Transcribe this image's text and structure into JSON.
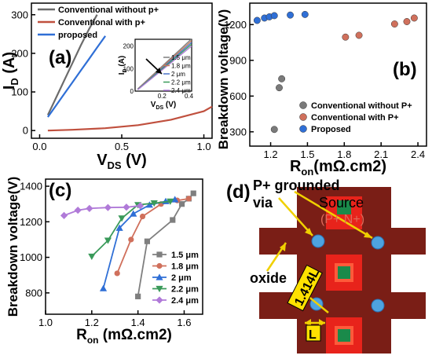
{
  "chart_data": [
    {
      "panel": "(a)",
      "type": "line",
      "xlabel_main": "V",
      "xlabel_sub": "DS",
      "xlabel_unit": " (V)",
      "ylabel_main": "I",
      "ylabel_sub": "D",
      "ylabel_unit": " (A)",
      "xlim": [
        -0.05,
        1.05
      ],
      "ylim": [
        -20,
        330
      ],
      "x_ticks": [
        0.0,
        0.5,
        1.0
      ],
      "x_tick_labels": [
        "0.0",
        "0.5",
        "1.0"
      ],
      "y_ticks": [
        0,
        100,
        200,
        300
      ],
      "y_tick_labels": [
        "0",
        "100",
        "200",
        "300"
      ],
      "legend_position": "top-left",
      "series": [
        {
          "name": "Conventional without p+",
          "color": "#6b6b6b",
          "x": [
            0.05,
            0.1,
            0.15,
            0.2,
            0.25,
            0.3,
            0.35
          ],
          "y": [
            40,
            85,
            130,
            175,
            220,
            262,
            300
          ]
        },
        {
          "name": "Conventional with p+",
          "color": "#c0503e",
          "x": [
            0.05,
            0.2,
            0.4,
            0.6,
            0.8,
            1.0,
            1.05
          ],
          "y": [
            0,
            2,
            6,
            14,
            28,
            50,
            62
          ]
        },
        {
          "name": "proposed",
          "color": "#2f6fd6",
          "x": [
            0.05,
            0.1,
            0.15,
            0.2,
            0.25,
            0.3,
            0.35,
            0.4
          ],
          "y": [
            35,
            65,
            95,
            125,
            155,
            185,
            215,
            245
          ]
        }
      ],
      "inset": {
        "xlabel_main": "V",
        "xlabel_sub": "DS",
        "xlabel_unit": " (V)",
        "ylabel_main": "I",
        "ylabel_sub": "D",
        "ylabel_unit": " (A)",
        "xlim": [
          0,
          0.42
        ],
        "ylim": [
          0,
          230
        ],
        "x_ticks": [
          0.2,
          0.4
        ],
        "x_tick_labels": [
          "0.2",
          "0.4"
        ],
        "y_ticks": [
          0,
          100,
          200
        ],
        "y_tick_labels": [
          "0",
          "100",
          "200"
        ],
        "arrow": "decreasing current with increasing spacing",
        "series": [
          {
            "name": "1.5 μm",
            "color": "#7f7f7f",
            "x": [
              0.02,
              0.42
            ],
            "y": [
              10,
              232
            ]
          },
          {
            "name": "1.8 μm",
            "color": "#c77c5a",
            "x": [
              0.02,
              0.42
            ],
            "y": [
              9,
              224
            ]
          },
          {
            "name": "2 μm",
            "color": "#4a72c8",
            "x": [
              0.02,
              0.42
            ],
            "y": [
              8,
              216
            ]
          },
          {
            "name": "2.2 μm",
            "color": "#3a9a5a",
            "x": [
              0.02,
              0.42
            ],
            "y": [
              7,
              208
            ]
          },
          {
            "name": "2.4 μm",
            "color": "#b07ad8",
            "x": [
              0.02,
              0.42
            ],
            "y": [
              6,
              200
            ]
          }
        ]
      }
    },
    {
      "panel": "(b)",
      "type": "scatter",
      "xlabel_main": "R",
      "xlabel_sub": "on",
      "xlabel_unit": "(mΩ.cm2)",
      "ylabel": "Breakdown voltage(V)",
      "xlim": [
        1.03,
        2.47
      ],
      "ylim": [
        180,
        1380
      ],
      "x_ticks": [
        1.2,
        1.5,
        1.8,
        2.1,
        2.4
      ],
      "x_tick_labels": [
        "1.2",
        "1.5",
        "1.8",
        "2.1",
        "2.4"
      ],
      "y_ticks": [
        300,
        600,
        900,
        1200
      ],
      "y_tick_labels": [
        "300",
        "600",
        "900",
        "1200"
      ],
      "legend_position": "bottom-right",
      "series": [
        {
          "name": "Conventional without P+",
          "color": "#7a7a7a",
          "x": [
            1.23,
            1.27,
            1.29
          ],
          "y": [
            320,
            670,
            745
          ]
        },
        {
          "name": "Conventional with P+",
          "color": "#d0705c",
          "x": [
            1.81,
            1.92,
            2.21,
            2.31,
            2.37
          ],
          "y": [
            1095,
            1110,
            1205,
            1225,
            1255
          ]
        },
        {
          "name": "Proposed",
          "color": "#2f6fd6",
          "x": [
            1.09,
            1.15,
            1.19,
            1.23,
            1.36,
            1.48
          ],
          "y": [
            1235,
            1255,
            1265,
            1275,
            1280,
            1285
          ]
        }
      ]
    },
    {
      "panel": "(c)",
      "type": "line",
      "xlabel_main": "R",
      "xlabel_sub": "on",
      "xlabel_unit": " (mΩ.cm2)",
      "ylabel": "Breakdown voltage(V)",
      "xlim": [
        1.0,
        1.68
      ],
      "ylim": [
        680,
        1440
      ],
      "x_ticks": [
        1.0,
        1.2,
        1.4,
        1.6
      ],
      "x_tick_labels": [
        "1.0",
        "1.2",
        "1.4",
        "1.6"
      ],
      "y_ticks": [
        800,
        1000,
        1200,
        1400
      ],
      "y_tick_labels": [
        "800",
        "1000",
        "1200",
        "1400"
      ],
      "legend_position": "bottom-right",
      "series": [
        {
          "name": "1.5 μm",
          "color": "#7f7f7f",
          "marker": "square",
          "x": [
            1.4,
            1.44,
            1.55,
            1.59,
            1.62,
            1.64
          ],
          "y": [
            780,
            1090,
            1210,
            1300,
            1330,
            1360
          ]
        },
        {
          "name": "1.8 μm",
          "color": "#d0705c",
          "marker": "circle",
          "x": [
            1.31,
            1.37,
            1.42,
            1.5,
            1.57,
            1.62
          ],
          "y": [
            910,
            1100,
            1230,
            1300,
            1320,
            1330
          ]
        },
        {
          "name": "2 μm",
          "color": "#2f6fd6",
          "marker": "triangle-up",
          "x": [
            1.25,
            1.32,
            1.38,
            1.45,
            1.52,
            1.56
          ],
          "y": [
            825,
            1165,
            1245,
            1295,
            1315,
            1325
          ]
        },
        {
          "name": "2.2 μm",
          "color": "#3a9a5a",
          "marker": "triangle-down",
          "x": [
            1.2,
            1.27,
            1.33,
            1.4,
            1.47,
            1.54
          ],
          "y": [
            1005,
            1095,
            1220,
            1295,
            1305,
            1315
          ]
        },
        {
          "name": "2.4 μm",
          "color": "#b07ad8",
          "marker": "diamond",
          "x": [
            1.08,
            1.14,
            1.19,
            1.27,
            1.35,
            1.41
          ],
          "y": [
            1235,
            1265,
            1275,
            1280,
            1282,
            1290
          ]
        }
      ]
    }
  ],
  "labels": {
    "panel_a": "(a)",
    "panel_b": "(b)",
    "panel_c": "(c)",
    "panel_d": "(d)"
  },
  "diagram": {
    "label_p_grounded_1": "P+ grounded",
    "label_p_grounded_2": "via",
    "label_source_1": "Source",
    "label_source_2": "(P+ N+)",
    "label_oxide": "oxide",
    "label_diag": "1.414L",
    "label_L": "L",
    "colors": {
      "oxide": "#7a1e16",
      "p_region": "#e8231b",
      "n_region": "#1a8a4a",
      "via": "#4ea3e0",
      "arrow": "#f0d000",
      "label_box": "#ffe100"
    }
  }
}
